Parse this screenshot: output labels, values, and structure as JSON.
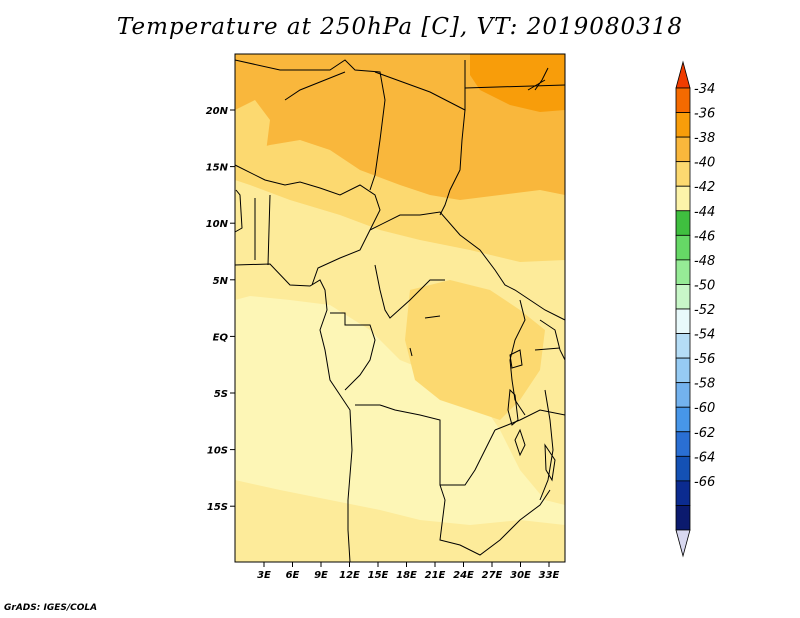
{
  "title": "Temperature at 250hPa [C], VT: 2019080318",
  "credit": "GrADS: IGES/COLA",
  "map": {
    "lon_ticks": [
      "3E",
      "6E",
      "9E",
      "12E",
      "15E",
      "18E",
      "21E",
      "24E",
      "27E",
      "30E",
      "33E"
    ],
    "lat_ticks": [
      "20N",
      "15N",
      "10N",
      "5N",
      "EQ",
      "5S",
      "10S",
      "15S"
    ]
  },
  "colorbar": {
    "labels": [
      "-34",
      "-36",
      "-38",
      "-40",
      "-42",
      "-44",
      "-46",
      "-48",
      "-50",
      "-52",
      "-54",
      "-56",
      "-58",
      "-60",
      "-62",
      "-64",
      "-66"
    ],
    "colors": [
      "#f03c00",
      "#f56a00",
      "#f89d0a",
      "#f9b73c",
      "#fcd970",
      "#fcf3a9",
      "#3fbf3f",
      "#66d866",
      "#96eb96",
      "#c8f7c8",
      "#e8f9fb",
      "#b5ddf6",
      "#96cbf3",
      "#73b2ee",
      "#4796e8",
      "#2a6fd3",
      "#1451b4",
      "#0b2b90",
      "#0b1a6e",
      "#d8d8f0"
    ]
  },
  "field_colors": {
    "t_-38": "#f9b73c",
    "t_-40": "#fcd970",
    "t_-42": "#fdeb9a",
    "t_-44": "#fdf6b6"
  }
}
